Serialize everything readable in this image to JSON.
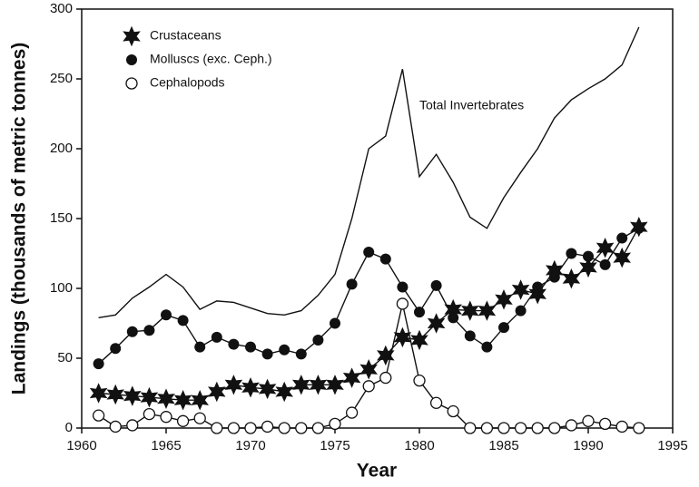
{
  "chart_data": {
    "type": "line",
    "x_label": "Year",
    "y_label": "Landings (thousands of metric tonnes)",
    "x": [
      1961,
      1962,
      1963,
      1964,
      1965,
      1966,
      1967,
      1968,
      1969,
      1970,
      1971,
      1972,
      1973,
      1974,
      1975,
      1976,
      1977,
      1978,
      1979,
      1980,
      1981,
      1982,
      1983,
      1984,
      1985,
      1986,
      1987,
      1988,
      1989,
      1990,
      1991,
      1992,
      1993
    ],
    "series": [
      {
        "name": "Crustaceans",
        "color": "#111111",
        "marker": "star",
        "values": [
          25,
          24,
          23,
          22,
          21,
          20,
          20,
          26,
          31,
          29,
          28,
          26,
          31,
          31,
          31,
          36,
          42,
          52,
          65,
          63,
          75,
          85,
          84,
          84,
          92,
          99,
          96,
          113,
          107,
          115,
          129,
          122,
          144
        ]
      },
      {
        "name": "Molluscs (exc. Ceph.)",
        "color": "#111111",
        "marker": "filled",
        "values": [
          46,
          57,
          69,
          70,
          81,
          77,
          58,
          65,
          60,
          58,
          53,
          56,
          53,
          63,
          75,
          103,
          126,
          121,
          101,
          83,
          102,
          79,
          66,
          58,
          72,
          84,
          101,
          108,
          125,
          123,
          117,
          136,
          143
        ]
      },
      {
        "name": "Cephalopods",
        "color": "#111111",
        "marker": "open",
        "values": [
          9,
          1,
          2,
          10,
          8,
          5,
          7,
          0,
          0,
          0,
          1,
          0,
          0,
          0,
          3,
          11,
          30,
          36,
          89,
          34,
          18,
          12,
          0,
          0,
          0,
          0,
          0,
          0,
          2,
          5,
          3,
          1,
          0
        ]
      },
      {
        "name": "Total Invertebrates",
        "color": "#111111",
        "marker": "none",
        "values": [
          79,
          81,
          93,
          101,
          110,
          101,
          85,
          91,
          90,
          86,
          82,
          81,
          84,
          95,
          110,
          150,
          200,
          209,
          257,
          180,
          196,
          176,
          151,
          143,
          165,
          183,
          200,
          222,
          235,
          243,
          250,
          260,
          287
        ]
      }
    ],
    "xlim": [
      1960,
      1995
    ],
    "xticks": [
      1960,
      1965,
      1970,
      1975,
      1980,
      1985,
      1990,
      1995
    ],
    "ylim": [
      0,
      300
    ],
    "yticks": [
      0,
      50,
      100,
      150,
      200,
      250,
      300
    ],
    "grid": false,
    "legend": "upper left"
  }
}
